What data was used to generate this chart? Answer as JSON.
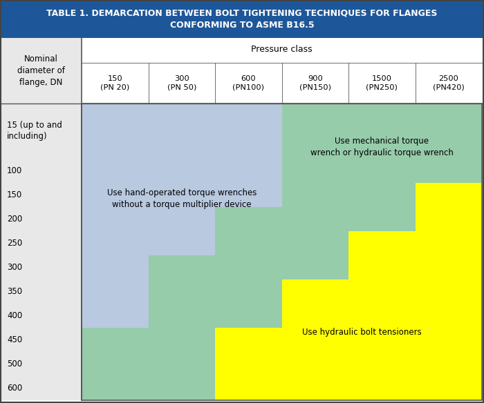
{
  "title_line1": "TABLE 1. DEMARCATION BETWEEN BOLT TIGHTENING TECHNIQUES FOR FLANGES",
  "title_line2": "CONFORMING TO ASME B16.5",
  "title_bg": "#1e5799",
  "title_color": "#ffffff",
  "col_header": "Pressure class",
  "row_header": "Nominal\ndiameter of\nflange, DN",
  "columns": [
    "150\n(PN 20)",
    "300\n(PN 50)",
    "600\n(PN100)",
    "900\n(PN150)",
    "1500\n(PN250)",
    "2500\n(PN420)"
  ],
  "rows": [
    "15 (up to and\nincluding)",
    "100",
    "150",
    "200",
    "250",
    "300",
    "350",
    "400",
    "450",
    "500",
    "600"
  ],
  "color_blue": "#b8c9e0",
  "color_green": "#96ccaa",
  "color_yellow": "#ffff00",
  "color_bg": "#e8e8e8",
  "label_blue": "Use hand-operated torque wrenches\nwithout a torque multiplier device",
  "label_green": "Use mechanical torque\nwrench or hydraulic torque wrench",
  "label_yellow": "Use hydraulic bolt tensioners",
  "blue_to_green_col": [
    8,
    5,
    3,
    -1,
    -1,
    -1
  ],
  "green_to_yellow_col": [
    -1,
    -1,
    8,
    6,
    4,
    2
  ]
}
